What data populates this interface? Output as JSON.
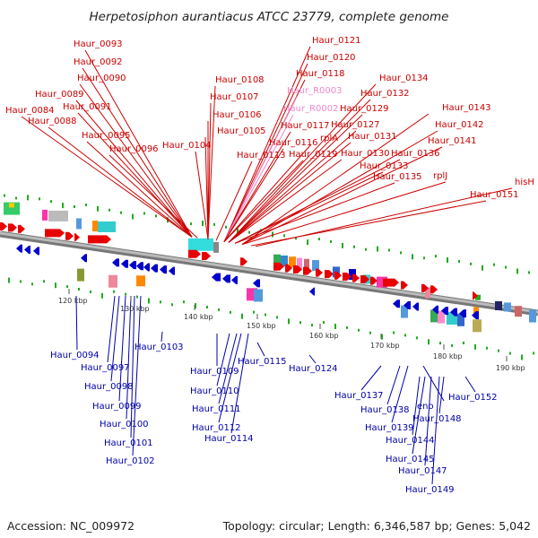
{
  "title": "Herpetosiphon aurantiacus ATCC 23779, complete genome",
  "footer": {
    "accession": "Accession: NC_009972",
    "topology": "Topology: circular; Length: 6,346,587 bp; Genes: 5,042"
  },
  "colors": {
    "forward": "#e60000",
    "reverse": "#0000cc",
    "rna": "#ee88cc",
    "forward_label": "#cc0000",
    "reverse_label": "#0000aa",
    "rna_label": "#ee88cc"
  },
  "scale_labels": [
    "120 kbp",
    "130 kbp",
    "140 kbp",
    "150 kbp",
    "160 kbp",
    "170 kbp",
    "180 kbp",
    "190 kbp"
  ],
  "top_labels": [
    {
      "text": "Haur_0093",
      "kind": "forward"
    },
    {
      "text": "Haur_0092",
      "kind": "forward"
    },
    {
      "text": "Haur_0090",
      "kind": "forward"
    },
    {
      "text": "Haur_0089",
      "kind": "forward"
    },
    {
      "text": "Haur_0084",
      "kind": "forward"
    },
    {
      "text": "Haur_0088",
      "kind": "forward"
    },
    {
      "text": "Haur_0091",
      "kind": "forward"
    },
    {
      "text": "Haur_0095",
      "kind": "forward"
    },
    {
      "text": "Haur_0096",
      "kind": "forward"
    },
    {
      "text": "Haur_0104",
      "kind": "forward"
    },
    {
      "text": "Haur_0108",
      "kind": "forward"
    },
    {
      "text": "Haur_0107",
      "kind": "forward"
    },
    {
      "text": "Haur_0106",
      "kind": "forward"
    },
    {
      "text": "Haur_0105",
      "kind": "forward"
    },
    {
      "text": "Haur_0113",
      "kind": "forward"
    },
    {
      "text": "Haur_0121",
      "kind": "forward"
    },
    {
      "text": "Haur_0120",
      "kind": "forward"
    },
    {
      "text": "Haur_0118",
      "kind": "forward"
    },
    {
      "text": "Haur_R0003",
      "kind": "rna"
    },
    {
      "text": "Haur_R0002",
      "kind": "rna"
    },
    {
      "text": "Haur_0117",
      "kind": "forward"
    },
    {
      "text": "rplA",
      "kind": "forward"
    },
    {
      "text": "Haur_0116",
      "kind": "forward"
    },
    {
      "text": "Haur_0119",
      "kind": "forward"
    },
    {
      "text": "Haur_0134",
      "kind": "forward"
    },
    {
      "text": "Haur_0132",
      "kind": "forward"
    },
    {
      "text": "Haur_0129",
      "kind": "forward"
    },
    {
      "text": "Haur_0127",
      "kind": "forward"
    },
    {
      "text": "Haur_0131",
      "kind": "forward"
    },
    {
      "text": "Haur_0130",
      "kind": "forward"
    },
    {
      "text": "Haur_0133",
      "kind": "forward"
    },
    {
      "text": "Haur_0136",
      "kind": "forward"
    },
    {
      "text": "Haur_0135",
      "kind": "forward"
    },
    {
      "text": "Haur_0143",
      "kind": "forward"
    },
    {
      "text": "Haur_0142",
      "kind": "forward"
    },
    {
      "text": "Haur_0141",
      "kind": "forward"
    },
    {
      "text": "rplJ",
      "kind": "forward"
    },
    {
      "text": "Haur_0151",
      "kind": "forward"
    },
    {
      "text": "hisH",
      "kind": "forward"
    }
  ],
  "bottom_labels": [
    {
      "text": "Haur_0094",
      "kind": "reverse"
    },
    {
      "text": "Haur_0097",
      "kind": "reverse"
    },
    {
      "text": "Haur_0098",
      "kind": "reverse"
    },
    {
      "text": "Haur_0099",
      "kind": "reverse"
    },
    {
      "text": "Haur_0100",
      "kind": "reverse"
    },
    {
      "text": "Haur_0101",
      "kind": "reverse"
    },
    {
      "text": "Haur_0102",
      "kind": "reverse"
    },
    {
      "text": "Haur_0103",
      "kind": "reverse"
    },
    {
      "text": "Haur_0109",
      "kind": "reverse"
    },
    {
      "text": "Haur_0110",
      "kind": "reverse"
    },
    {
      "text": "Haur_0111",
      "kind": "reverse"
    },
    {
      "text": "Haur_0112",
      "kind": "reverse"
    },
    {
      "text": "Haur_0114",
      "kind": "reverse"
    },
    {
      "text": "Haur_0115",
      "kind": "reverse"
    },
    {
      "text": "Haur_0124",
      "kind": "reverse"
    },
    {
      "text": "Haur_0137",
      "kind": "reverse"
    },
    {
      "text": "Haur_0138",
      "kind": "reverse"
    },
    {
      "text": "Haur_0139",
      "kind": "reverse"
    },
    {
      "text": "eno",
      "kind": "reverse"
    },
    {
      "text": "Haur_0148",
      "kind": "reverse"
    },
    {
      "text": "Haur_0144",
      "kind": "reverse"
    },
    {
      "text": "Haur_0145",
      "kind": "reverse"
    },
    {
      "text": "Haur_0147",
      "kind": "reverse"
    },
    {
      "text": "Haur_0149",
      "kind": "reverse"
    },
    {
      "text": "Haur_0152",
      "kind": "reverse"
    }
  ]
}
